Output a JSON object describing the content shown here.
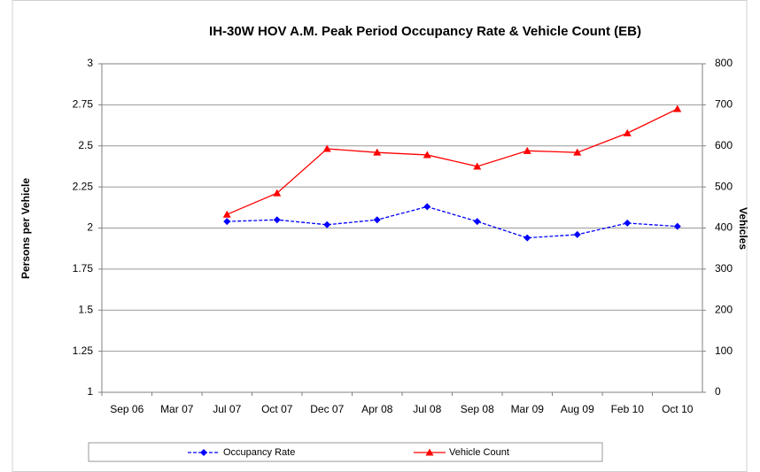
{
  "chart_data": {
    "type": "line",
    "title": "IH-30W HOV A.M. Peak Period Occupancy Rate & Vehicle Count (EB)",
    "y_label": "Persons per Vehicle",
    "y2_label": "Vehicles",
    "categories": [
      "Sep 06",
      "Mar 07",
      "Jul 07",
      "Oct 07",
      "Dec 07",
      "Apr 08",
      "Jul 08",
      "Sep 08",
      "Mar 09",
      "Aug 09",
      "Feb 10",
      "Oct 10"
    ],
    "series": [
      {
        "name": "Occupancy Rate",
        "color": "#0000ff",
        "marker": "diamond",
        "line_style": "dashed",
        "values": [
          null,
          null,
          2.04,
          2.05,
          2.02,
          2.05,
          2.13,
          2.04,
          1.94,
          1.96,
          2.03,
          2.01
        ]
      },
      {
        "name": "Vehicle Count",
        "color": "#ff0000",
        "marker": "triangle",
        "line_style": "solid",
        "axis": "y2",
        "values": [
          null,
          null,
          433,
          485,
          593,
          584,
          578,
          550,
          588,
          584,
          631,
          690
        ]
      }
    ],
    "ylim": [
      1,
      3
    ],
    "yticks": [
      1,
      1.25,
      1.5,
      1.75,
      2,
      2.25,
      2.5,
      2.75,
      3
    ],
    "y2lim": [
      0,
      800
    ],
    "y2ticks": [
      0,
      100,
      200,
      300,
      400,
      500,
      600,
      700,
      800
    ],
    "grid": true,
    "legend": "bottom"
  }
}
